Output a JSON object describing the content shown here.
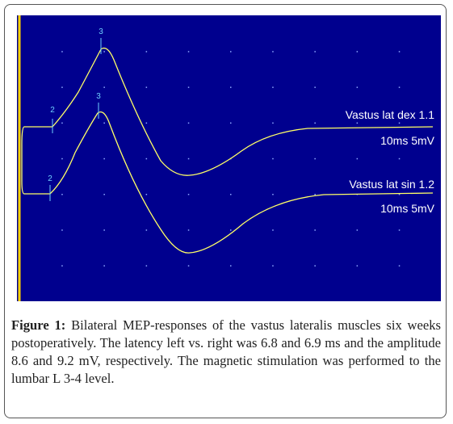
{
  "figure": {
    "markers": [
      "3",
      "2",
      "3",
      "2"
    ],
    "traces": [
      {
        "name": "Vastus  lat dex 1.1",
        "scale": "10ms 5mV"
      },
      {
        "name": "Vastus  lat sin 1.2",
        "scale": "10ms 5mV"
      }
    ]
  },
  "caption": {
    "label": "Figure 1:",
    "text": "Bilateral MEP-responses of the vastus lateralis muscles six weeks postoperatively. The latency left vs. right was 6.8 and 6.9 ms and the amplitude 8.6 and 9.2 mV, respectively. The magnetic stimulation was performed to the lumbar L 3-4 level."
  }
}
